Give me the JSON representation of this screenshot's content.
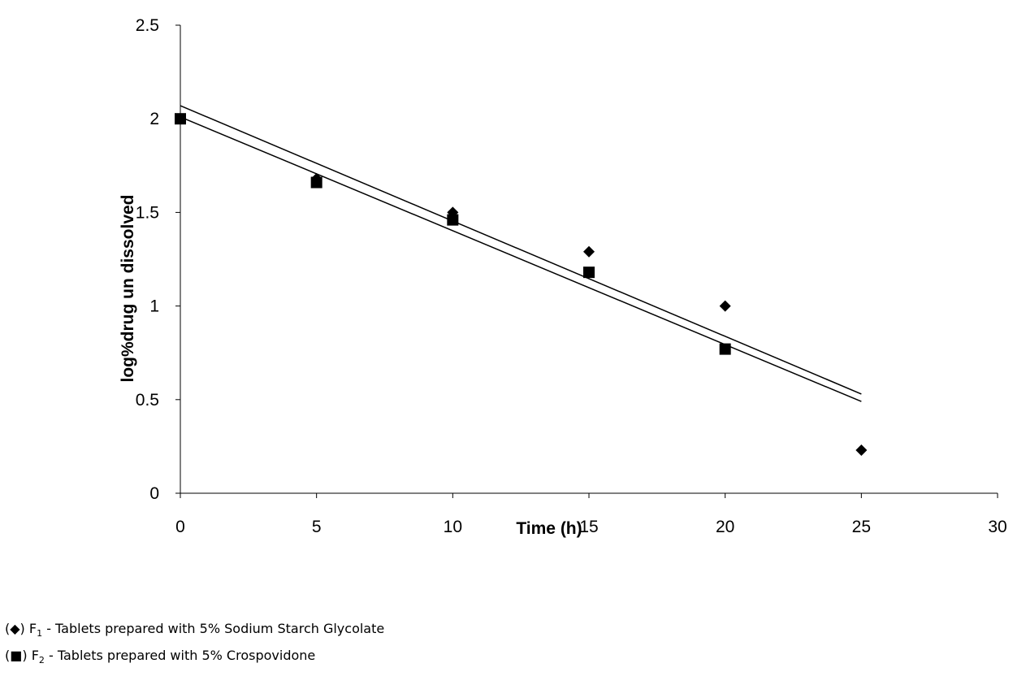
{
  "chart_data": {
    "type": "scatter",
    "xlabel": "Time (h)",
    "ylabel": "log%drug un dissolved",
    "xlim": [
      0,
      30
    ],
    "ylim": [
      0,
      2.5
    ],
    "x_ticks": [
      "0",
      "5",
      "10",
      "15",
      "20",
      "25",
      "30"
    ],
    "y_ticks": [
      "0",
      "0.5",
      "1",
      "1.5",
      "2",
      "2.5"
    ],
    "grid": false,
    "series": [
      {
        "name": "F1",
        "marker": "diamond",
        "x": [
          0,
          5,
          10,
          15,
          20,
          25
        ],
        "y": [
          2.0,
          1.68,
          1.5,
          1.29,
          1.0,
          0.23
        ],
        "trendline": {
          "x": [
            0,
            25
          ],
          "y": [
            2.07,
            0.53
          ]
        }
      },
      {
        "name": "F2",
        "marker": "square",
        "x": [
          0,
          5,
          10,
          15,
          20
        ],
        "y": [
          2.0,
          1.66,
          1.46,
          1.18,
          0.77
        ],
        "trendline": {
          "x": [
            0,
            25
          ],
          "y": [
            2.01,
            0.49
          ]
        }
      }
    ]
  },
  "legend": [
    {
      "symbol": "(◆)",
      "label": "F",
      "sub": "1",
      "text": " - Tablets prepared with 5% Sodium Starch Glycolate"
    },
    {
      "symbol": "(■)",
      "label": "F",
      "sub": "2",
      "text": " - Tablets prepared with 5% Crospovidone"
    }
  ]
}
